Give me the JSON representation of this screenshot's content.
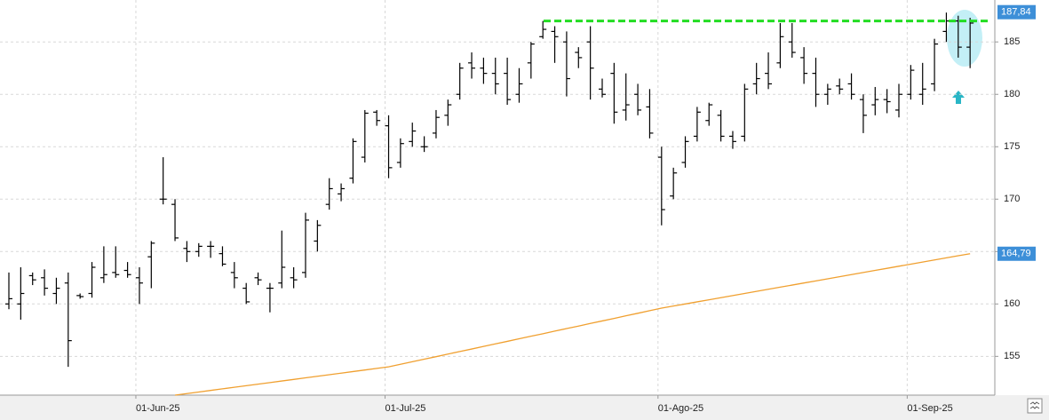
{
  "chart_data": {
    "type": "ohlc",
    "categories": [
      null,
      null,
      null,
      null,
      null,
      null,
      null,
      null,
      null,
      null,
      null,
      "01-Jun-25",
      null,
      null,
      null,
      null,
      null,
      null,
      null,
      null,
      null,
      null,
      null,
      null,
      null,
      null,
      null,
      null,
      null,
      null,
      null,
      null,
      "01-Jul-25",
      null,
      null,
      null,
      null,
      null,
      null,
      null,
      null,
      null,
      null,
      null,
      null,
      null,
      null,
      null,
      null,
      null,
      null,
      null,
      null,
      null,
      null,
      "01-Ago-25",
      null,
      null,
      null,
      null,
      null,
      null,
      null,
      null,
      null,
      null,
      null,
      null,
      null,
      null,
      null,
      null,
      null,
      null,
      null,
      null,
      "01-Sep-25",
      null,
      null,
      null,
      null,
      null
    ],
    "open": [
      160,
      160,
      162.7,
      162.5,
      161,
      162,
      160.8,
      161,
      162.5,
      163,
      163.2,
      162.5,
      164.5,
      170,
      169.5,
      165.3,
      165,
      165.5,
      164.8,
      163,
      161.5,
      162.5,
      161.5,
      162,
      162.5,
      163,
      166,
      169.5,
      170.5,
      172,
      174,
      178.3,
      177,
      173.5,
      175.5,
      175,
      176.3,
      178,
      180,
      183,
      182.5,
      182,
      182,
      180,
      183,
      185.5,
      186,
      185,
      184,
      185,
      180.5,
      182,
      178.5,
      180,
      178.8,
      174,
      170.3,
      173.5,
      176,
      177.5,
      178,
      176,
      176,
      181,
      182,
      183,
      185,
      183.5,
      182,
      180,
      180.8,
      181,
      179.5,
      179,
      179.5,
      178.5,
      180,
      180,
      181,
      186,
      187,
      184.5
    ],
    "high": [
      163,
      163.5,
      163,
      163.3,
      162.5,
      163,
      161,
      164,
      165.5,
      165.5,
      164,
      163.5,
      166,
      174,
      170,
      166,
      165.8,
      166,
      165.5,
      164,
      162,
      163,
      162,
      167,
      163.5,
      168.7,
      168,
      172,
      171.5,
      175.8,
      178.5,
      178.5,
      178,
      175.8,
      177.3,
      176,
      178.5,
      179.5,
      183,
      184,
      183.5,
      183.5,
      183.5,
      182.5,
      185,
      187,
      186.5,
      186,
      184.5,
      186.5,
      181.5,
      183,
      182,
      181,
      180.5,
      175,
      173,
      176,
      178.8,
      179.2,
      178.5,
      176.5,
      181,
      183,
      184,
      186.8,
      186.8,
      184.5,
      183.5,
      181,
      181.5,
      182,
      180,
      180.7,
      180.5,
      181,
      182.8,
      183,
      185.3,
      187.8,
      187.5,
      187.3
    ],
    "low": [
      159.5,
      158.5,
      161.8,
      160.8,
      160,
      154,
      160.5,
      160.6,
      162,
      162.5,
      162.5,
      160,
      161.5,
      169.5,
      166,
      164,
      164.5,
      164.4,
      163.6,
      161.5,
      160,
      161.8,
      159.2,
      161.5,
      161.5,
      162.5,
      165,
      169,
      169.8,
      171.5,
      173.5,
      177,
      172,
      173,
      175,
      174.5,
      175.8,
      177,
      179.5,
      181.5,
      181,
      180,
      179,
      179.2,
      181.5,
      185.3,
      183,
      179.8,
      182.5,
      179.5,
      179.7,
      177.2,
      177.5,
      178,
      175.8,
      167.5,
      170,
      173,
      175.5,
      177,
      175.5,
      174.8,
      175.5,
      180,
      180.5,
      182.5,
      183.5,
      181,
      178.8,
      179,
      180,
      179.5,
      176.3,
      178,
      178.2,
      177.8,
      179.5,
      179,
      180.3,
      185,
      183.5,
      182.5
    ],
    "close": [
      160.5,
      161,
      162.3,
      161.5,
      161.5,
      156.5,
      160.7,
      163.5,
      162.8,
      162.8,
      162.8,
      162,
      165.8,
      170,
      166.3,
      165,
      165.5,
      165.5,
      163.8,
      162.5,
      160.2,
      162.3,
      161.5,
      163.5,
      162.3,
      168,
      167.5,
      171,
      171,
      175.5,
      178.2,
      177.5,
      173,
      175.3,
      176.5,
      175,
      177.8,
      179,
      182.5,
      182.5,
      182,
      181,
      179.5,
      181,
      184.8,
      186.2,
      185.5,
      181.5,
      183.5,
      182.5,
      180,
      178.3,
      179,
      178.5,
      176.3,
      169,
      172.5,
      175.5,
      178.3,
      179,
      176,
      175.5,
      180.5,
      181.5,
      181,
      185.5,
      184,
      182,
      180,
      180.5,
      180.5,
      180,
      178,
      179.5,
      179.3,
      180,
      182.3,
      180.5,
      184.8,
      187,
      184.5,
      186.8
    ],
    "bar_color": "#000000",
    "moving_average": {
      "color": "#f0a030",
      "values": [
        null,
        null,
        null,
        null,
        null,
        null,
        null,
        null,
        null,
        null,
        null,
        null,
        null,
        null,
        151.3,
        151.45,
        151.6,
        151.75,
        151.9,
        152.05,
        152.2,
        152.35,
        152.5,
        152.65,
        152.8,
        152.95,
        153.1,
        153.25,
        153.4,
        153.55,
        153.7,
        153.85,
        154.0,
        154.24,
        154.49,
        154.73,
        154.97,
        155.22,
        155.46,
        155.7,
        155.95,
        156.19,
        156.43,
        156.68,
        156.92,
        157.16,
        157.41,
        157.65,
        157.89,
        158.14,
        158.38,
        158.62,
        158.87,
        159.11,
        159.36,
        159.6,
        159.8,
        160.0,
        160.2,
        160.4,
        160.6,
        160.8,
        161.0,
        161.2,
        161.4,
        161.6,
        161.8,
        162.0,
        162.2,
        162.4,
        162.6,
        162.8,
        163.0,
        163.2,
        163.4,
        163.6,
        163.8,
        164.0,
        164.2,
        164.4,
        164.6,
        164.79
      ]
    },
    "resistance": {
      "value": 187,
      "color": "#22dd22"
    },
    "price_labels": [
      {
        "value": 187.84,
        "label": "187,84"
      },
      {
        "value": 164.79,
        "label": "164,79"
      }
    ],
    "label_color": "#3d8fd8",
    "ylim": [
      151.3,
      189
    ],
    "yticks": [
      155,
      160,
      165,
      170,
      175,
      180,
      185
    ],
    "grid": true
  }
}
